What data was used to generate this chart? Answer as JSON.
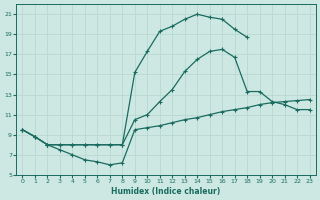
{
  "xlabel": "Humidex (Indice chaleur)",
  "bg_color": "#cde8e2",
  "grid_color": "#b8d8d2",
  "line_color": "#1a6b60",
  "xlim_min": -0.5,
  "xlim_max": 23.5,
  "ylim_min": 5,
  "ylim_max": 22,
  "xticks": [
    0,
    1,
    2,
    3,
    4,
    5,
    6,
    7,
    8,
    9,
    10,
    11,
    12,
    13,
    14,
    15,
    16,
    17,
    18,
    19,
    20,
    21,
    22,
    23
  ],
  "yticks": [
    5,
    7,
    9,
    11,
    13,
    15,
    17,
    19,
    21
  ],
  "line_top_x": [
    0,
    1,
    2,
    3,
    4,
    5,
    6,
    7,
    8,
    9,
    10,
    11,
    12,
    13,
    14,
    15,
    16,
    17,
    18
  ],
  "line_top_y": [
    9.5,
    8.8,
    8.0,
    8.0,
    8.0,
    8.0,
    8.0,
    8.0,
    8.0,
    15.2,
    17.3,
    19.3,
    19.8,
    20.5,
    21.0,
    20.7,
    20.5,
    19.5,
    18.7
  ],
  "line_mid_x": [
    0,
    1,
    2,
    3,
    4,
    5,
    6,
    7,
    8,
    9,
    10,
    11,
    12,
    13,
    14,
    15,
    16,
    17,
    18,
    19,
    20,
    21,
    22,
    23
  ],
  "line_mid_y": [
    9.5,
    8.8,
    8.0,
    8.0,
    8.0,
    8.0,
    8.0,
    8.0,
    8.0,
    10.5,
    11.0,
    12.3,
    13.5,
    15.3,
    16.5,
    17.3,
    17.5,
    16.7,
    13.3,
    13.3,
    12.3,
    12.0,
    11.5,
    11.5
  ],
  "line_bot_x": [
    0,
    1,
    2,
    3,
    4,
    5,
    6,
    7,
    8,
    9,
    10,
    11,
    12,
    13,
    14,
    15,
    16,
    17,
    18,
    19,
    20,
    21,
    22,
    23
  ],
  "line_bot_y": [
    9.5,
    8.8,
    8.0,
    7.5,
    7.0,
    6.5,
    6.3,
    6.0,
    6.2,
    9.5,
    9.7,
    9.9,
    10.2,
    10.5,
    10.7,
    11.0,
    11.3,
    11.5,
    11.7,
    12.0,
    12.2,
    12.3,
    12.4,
    12.5
  ],
  "marker_size": 2.5,
  "line_width": 0.9
}
